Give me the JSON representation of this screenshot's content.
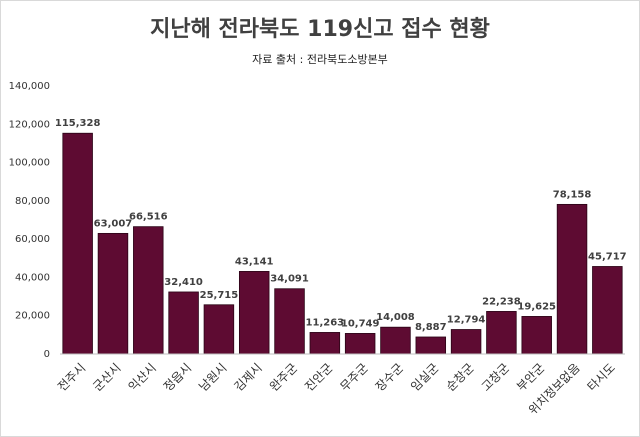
{
  "chart_data": {
    "type": "bar",
    "title": "지난해 전라북도 119신고 접수 현황",
    "subtitle": "자료 출처 : 전라북도소방본부",
    "categories": [
      "전주시",
      "군산시",
      "익산시",
      "정읍시",
      "남원시",
      "김제시",
      "완주군",
      "진안군",
      "무주군",
      "장수군",
      "임실군",
      "순창군",
      "고창군",
      "부안군",
      "위치정보없음",
      "타시도"
    ],
    "values": [
      115328,
      63007,
      66516,
      32410,
      25715,
      43141,
      34091,
      11263,
      10749,
      14008,
      8887,
      12794,
      22238,
      19625,
      78158,
      45717
    ],
    "value_labels": [
      "115,328",
      "63,007",
      "66,516",
      "32,410",
      "25,715",
      "43,141",
      "34,091",
      "11,263",
      "10,749",
      "14,008",
      "8,887",
      "12,794",
      "22,238",
      "19,625",
      "78,158",
      "45,717"
    ],
    "color": "#5e0b32",
    "ylim": [
      0,
      140000
    ],
    "yticks": [
      0,
      {
        "value": 20000,
        "label": "20,000"
      },
      {
        "value": 40000,
        "label": "40,000"
      },
      {
        "value": 60000,
        "label": "60,000"
      },
      {
        "value": 80000,
        "label": "80,000"
      },
      {
        "value": 100000,
        "label": "100,000"
      },
      {
        "value": 120000,
        "label": "120,000"
      },
      {
        "value": 140000,
        "label": "140,000"
      }
    ],
    "grid": false
  }
}
